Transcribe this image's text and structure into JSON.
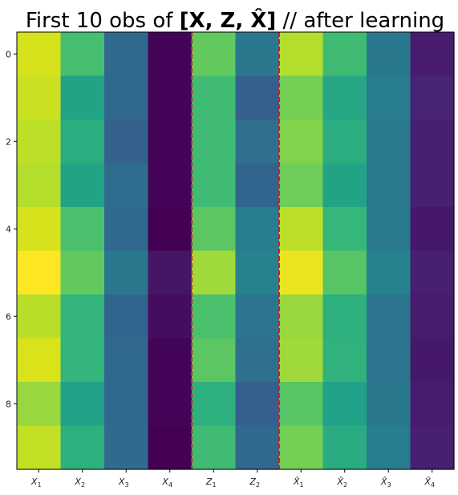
{
  "chart_data": {
    "type": "heatmap",
    "title": {
      "prefix": "First 10 obs of ",
      "math": "[X, Z, X̂]",
      "suffix": " // after learning"
    },
    "columns": [
      {
        "base": "X",
        "sub": "1",
        "hat": false
      },
      {
        "base": "X",
        "sub": "2",
        "hat": false
      },
      {
        "base": "X",
        "sub": "3",
        "hat": false
      },
      {
        "base": "X",
        "sub": "4",
        "hat": false
      },
      {
        "base": "Z",
        "sub": "1",
        "hat": false
      },
      {
        "base": "Z",
        "sub": "2",
        "hat": false
      },
      {
        "base": "X",
        "sub": "1",
        "hat": true
      },
      {
        "base": "X",
        "sub": "2",
        "hat": true
      },
      {
        "base": "X",
        "sub": "3",
        "hat": true
      },
      {
        "base": "X",
        "sub": "4",
        "hat": true
      }
    ],
    "row_ticks": [
      0,
      2,
      4,
      6,
      8
    ],
    "rows": 10,
    "colormap": "viridis",
    "value_range": [
      0,
      1
    ],
    "separators_after_columns": [
      4,
      6
    ],
    "separator_color": "#e8141c",
    "values": [
      [
        0.89,
        0.63,
        0.3,
        0.01,
        0.68,
        0.36,
        0.8,
        0.62,
        0.36,
        0.07
      ],
      [
        0.86,
        0.52,
        0.3,
        0.01,
        0.62,
        0.27,
        0.71,
        0.53,
        0.38,
        0.09
      ],
      [
        0.82,
        0.56,
        0.28,
        0.01,
        0.62,
        0.33,
        0.73,
        0.56,
        0.37,
        0.08
      ],
      [
        0.8,
        0.52,
        0.32,
        0.01,
        0.62,
        0.29,
        0.7,
        0.52,
        0.37,
        0.08
      ],
      [
        0.89,
        0.64,
        0.3,
        0.0,
        0.67,
        0.38,
        0.82,
        0.6,
        0.37,
        0.06
      ],
      [
        1.0,
        0.68,
        0.36,
        0.05,
        0.77,
        0.4,
        0.95,
        0.66,
        0.4,
        0.08
      ],
      [
        0.81,
        0.59,
        0.29,
        0.03,
        0.64,
        0.35,
        0.76,
        0.57,
        0.35,
        0.07
      ],
      [
        0.9,
        0.59,
        0.3,
        0.01,
        0.67,
        0.33,
        0.77,
        0.58,
        0.35,
        0.06
      ],
      [
        0.76,
        0.51,
        0.3,
        0.01,
        0.57,
        0.27,
        0.66,
        0.51,
        0.36,
        0.07
      ],
      [
        0.84,
        0.57,
        0.31,
        0.0,
        0.62,
        0.3,
        0.71,
        0.55,
        0.38,
        0.08
      ]
    ]
  }
}
